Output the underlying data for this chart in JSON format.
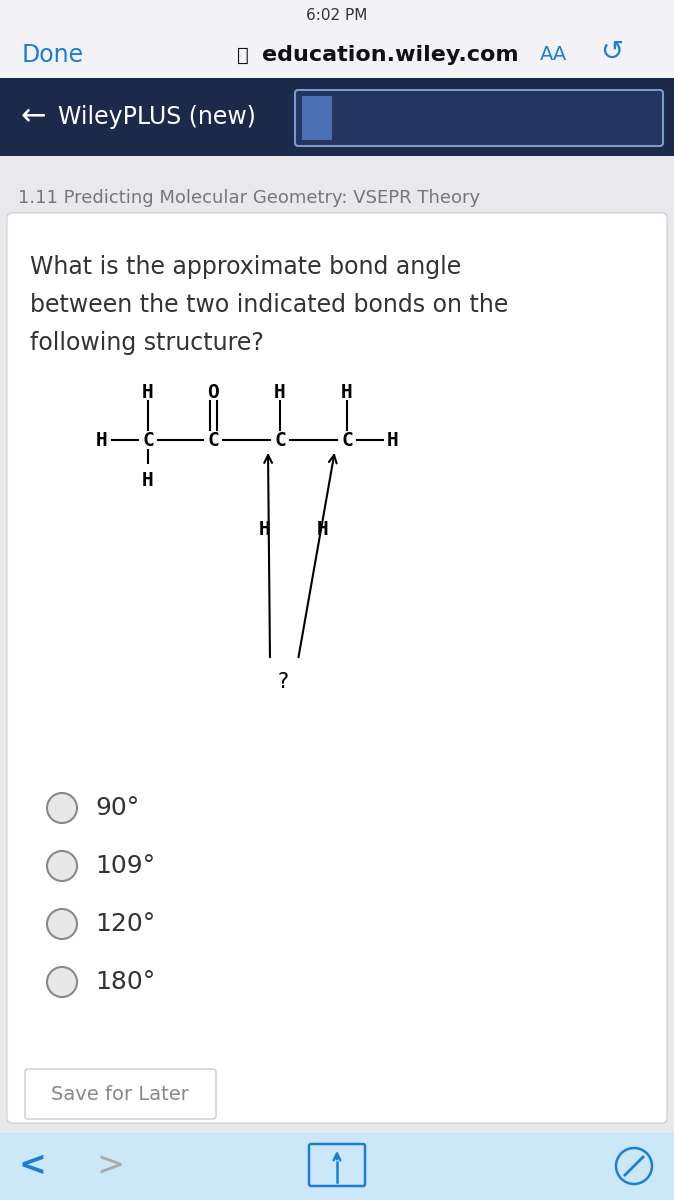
{
  "bg_statusbar": "#f2f2f7",
  "bg_browser": "#f2f2f7",
  "bg_nav": "#1b2a4a",
  "bg_page": "#e8e8ed",
  "bg_card": "#ffffff",
  "bg_bottom": "#cce8f8",
  "color_done": "#1a7fd4",
  "color_url": "#111111",
  "color_aa": "#1a7fd4",
  "color_refresh": "#1a7fd4",
  "color_nav_text": "#ffffff",
  "color_section": "#777777",
  "color_question": "#333333",
  "color_radio_fill": "#e8e8e8",
  "color_radio_border": "#888888",
  "color_option": "#333333",
  "color_save_border": "#cccccc",
  "color_save_text": "#888888",
  "color_bottom_icon_blue": "#1a7fd4",
  "color_bottom_icon_gray": "#aaaaaa",
  "nav_title": "WileyPLUS (new)",
  "section_title": "1.11 Predicting Molecular Geometry: VSEPR Theory",
  "question_line1": "What is the approximate bond angle",
  "question_line2": "between the two indicated bonds on the",
  "question_line3": "following structure?",
  "options": [
    "90°",
    "109°",
    "120°",
    "180°"
  ],
  "save_button": "Save for Later",
  "status_time": "6:02 PM"
}
